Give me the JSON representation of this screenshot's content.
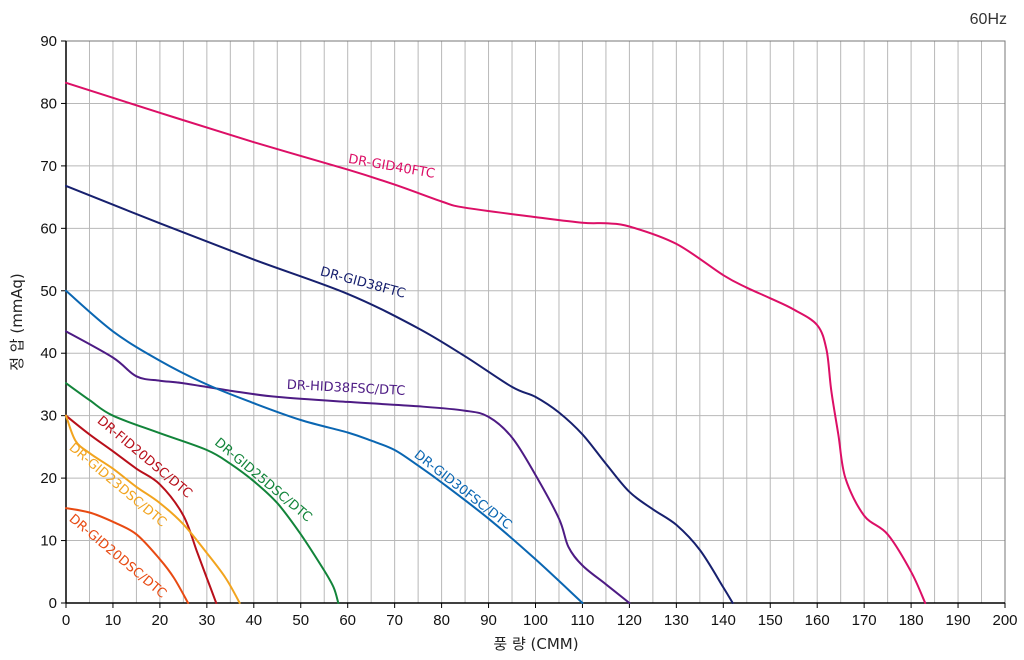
{
  "chart_data": {
    "type": "line",
    "frequency_label": "60Hz",
    "xlabel": "풍 량 (CMM)",
    "ylabel": "정 압 (mmAq)",
    "xlim": [
      0,
      200
    ],
    "ylim": [
      0,
      90
    ],
    "x_ticks": [
      0,
      10,
      20,
      30,
      40,
      50,
      60,
      70,
      80,
      90,
      100,
      110,
      120,
      130,
      140,
      150,
      160,
      170,
      180,
      190,
      200
    ],
    "y_ticks": [
      0,
      10,
      20,
      30,
      40,
      50,
      60,
      70,
      80,
      90
    ],
    "grid": true,
    "x_minor_step": 5,
    "series": [
      {
        "name": "DR-GID40FTC",
        "color": "#dc0f66",
        "points": [
          [
            0,
            83.3
          ],
          [
            20,
            78.5
          ],
          [
            40,
            73.8
          ],
          [
            60,
            69.4
          ],
          [
            70,
            67
          ],
          [
            80,
            64.3
          ],
          [
            85,
            63.3
          ],
          [
            100,
            61.8
          ],
          [
            110,
            60.9
          ],
          [
            115,
            60.8
          ],
          [
            120,
            60.3
          ],
          [
            130,
            57.5
          ],
          [
            140,
            52.5
          ],
          [
            145,
            50.5
          ],
          [
            150,
            48.8
          ],
          [
            155,
            47
          ],
          [
            160,
            44.5
          ],
          [
            162,
            40.5
          ],
          [
            163,
            34
          ],
          [
            164.5,
            27
          ],
          [
            166,
            20
          ],
          [
            170,
            14
          ],
          [
            175,
            11
          ],
          [
            180,
            5
          ],
          [
            183,
            0
          ]
        ]
      },
      {
        "name": "DR-GID38FTC",
        "color": "#17206e",
        "points": [
          [
            0,
            66.8
          ],
          [
            20,
            60.8
          ],
          [
            40,
            55
          ],
          [
            60,
            49.5
          ],
          [
            75,
            44
          ],
          [
            85,
            39.5
          ],
          [
            95,
            34.6
          ],
          [
            100,
            33
          ],
          [
            105,
            30.5
          ],
          [
            110,
            27
          ],
          [
            115,
            22.3
          ],
          [
            120,
            17.8
          ],
          [
            125,
            15
          ],
          [
            130,
            12.5
          ],
          [
            135,
            8.5
          ],
          [
            140,
            2.5
          ],
          [
            142,
            0
          ]
        ]
      },
      {
        "name": "DR-HID38FSC/DTC",
        "color": "#4d1b84",
        "points": [
          [
            0,
            43.5
          ],
          [
            10,
            39.3
          ],
          [
            15,
            36.3
          ],
          [
            20,
            35.6
          ],
          [
            25,
            35.2
          ],
          [
            35,
            34
          ],
          [
            45,
            33
          ],
          [
            60,
            32.2
          ],
          [
            75,
            31.5
          ],
          [
            85,
            30.8
          ],
          [
            90,
            29.8
          ],
          [
            95,
            26.5
          ],
          [
            100,
            20.5
          ],
          [
            105,
            13.5
          ],
          [
            107,
            9
          ],
          [
            110,
            6
          ],
          [
            115,
            3
          ],
          [
            120,
            0
          ]
        ]
      },
      {
        "name": "DR-GID30FSC/DTC",
        "color": "#0a66b2",
        "points": [
          [
            0,
            50
          ],
          [
            10,
            43.5
          ],
          [
            20,
            38.8
          ],
          [
            30,
            35
          ],
          [
            40,
            32
          ],
          [
            50,
            29.3
          ],
          [
            60,
            27.3
          ],
          [
            65,
            26
          ],
          [
            70,
            24.5
          ],
          [
            75,
            22
          ],
          [
            80,
            19.3
          ],
          [
            90,
            13.5
          ],
          [
            100,
            7
          ],
          [
            110,
            0
          ]
        ]
      },
      {
        "name": "DR-GID25DSC/DTC",
        "color": "#12843a",
        "points": [
          [
            0,
            35.2
          ],
          [
            5,
            32.5
          ],
          [
            10,
            30
          ],
          [
            20,
            27.2
          ],
          [
            30,
            24.5
          ],
          [
            35,
            22.3
          ],
          [
            40,
            19.5
          ],
          [
            45,
            16
          ],
          [
            50,
            11
          ],
          [
            55,
            5.2
          ],
          [
            57,
            2.5
          ],
          [
            58,
            0
          ]
        ]
      },
      {
        "name": "DR-FID20DSC/DTC",
        "color": "#b80f1a",
        "points": [
          [
            0,
            30
          ],
          [
            5,
            27
          ],
          [
            10,
            24.3
          ],
          [
            15,
            21.5
          ],
          [
            20,
            19
          ],
          [
            25,
            14
          ],
          [
            28,
            8
          ],
          [
            30,
            4
          ],
          [
            32,
            0
          ]
        ]
      },
      {
        "name": "DR-GID23DSC/DTC",
        "color": "#f2a41e",
        "points": [
          [
            0,
            30
          ],
          [
            2,
            26
          ],
          [
            5,
            24
          ],
          [
            10,
            21.5
          ],
          [
            15,
            18.6
          ],
          [
            20,
            16
          ],
          [
            25,
            12.6
          ],
          [
            30,
            8
          ],
          [
            34,
            4
          ],
          [
            37,
            0
          ]
        ]
      },
      {
        "name": "DR-GID20DSC/DTC",
        "color": "#e84a12",
        "points": [
          [
            0,
            15.2
          ],
          [
            5,
            14.5
          ],
          [
            10,
            13
          ],
          [
            15,
            11
          ],
          [
            20,
            7
          ],
          [
            23,
            4
          ],
          [
            26,
            0
          ]
        ]
      }
    ],
    "labels": [
      {
        "text": "DR-GID40FTC",
        "x": 60,
        "y": 70.5,
        "angle": 10,
        "color": "#dc0f66"
      },
      {
        "text": "DR-GID38FTC",
        "x": 54,
        "y": 52.5,
        "angle": 15,
        "color": "#17206e"
      },
      {
        "text": "DR-HID38FSC/DTC",
        "x": 47,
        "y": 34.3,
        "angle": 3,
        "color": "#4d1b84"
      },
      {
        "text": "DR-GID30FSC/DTC",
        "x": 74,
        "y": 23.5,
        "angle": 38,
        "color": "#0a66b2"
      },
      {
        "text": "DR-GID25DSC/DTC",
        "x": 31.5,
        "y": 25.5,
        "angle": 40,
        "color": "#12843a"
      },
      {
        "text": "DR-FID20DSC/DTC",
        "x": 6.5,
        "y": 29,
        "angle": 40,
        "color": "#b80f1a"
      },
      {
        "text": "DR-GID23DSC/DTC",
        "x": 0.5,
        "y": 24.7,
        "angle": 40,
        "color": "#f2a41e"
      },
      {
        "text": "DR-GID20DSC/DTC",
        "x": 0.5,
        "y": 13.3,
        "angle": 40,
        "color": "#e84a12"
      }
    ]
  }
}
